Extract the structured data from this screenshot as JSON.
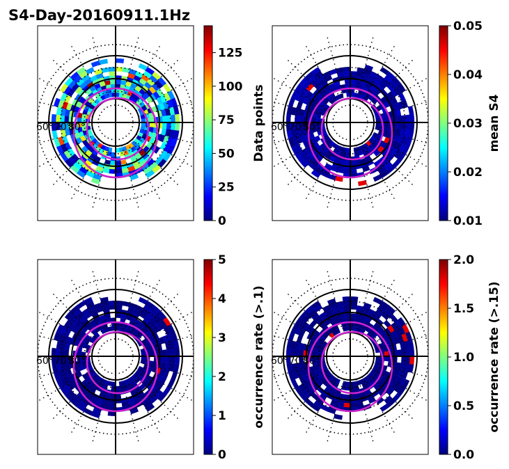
{
  "title": "S4-Day-20160911.1Hz",
  "lat_tick_labels": [
    "60°",
    "70°",
    "80°"
  ],
  "colors": {
    "data_ring_magenta": "#cc22cc",
    "grid_black": "#000000",
    "jet": [
      "#00007f",
      "#0000ff",
      "#007fff",
      "#00ffff",
      "#7fff7f",
      "#ffff00",
      "#ff7f00",
      "#ff0000",
      "#7f0000"
    ]
  },
  "chart_data": [
    {
      "type": "heatmap",
      "projection": "polar",
      "panel": "top-left",
      "colorbar_label": "Data points",
      "range": [
        0,
        145
      ],
      "ticks": [
        0,
        25,
        50,
        75,
        100,
        125
      ],
      "tick_labels": [
        "0",
        "25",
        "50",
        "75",
        "100",
        "125"
      ],
      "level": 0.3,
      "spread": 0.3
    },
    {
      "type": "heatmap",
      "projection": "polar",
      "panel": "top-right",
      "colorbar_label": "mean S4",
      "range": [
        0.01,
        0.05
      ],
      "ticks": [
        0.01,
        0.02,
        0.03,
        0.04,
        0.05
      ],
      "tick_labels": [
        "0.01",
        "0.02",
        "0.03",
        "0.04",
        "0.05"
      ],
      "level": 0.03,
      "spread": 0.04
    },
    {
      "type": "heatmap",
      "projection": "polar",
      "panel": "bottom-left",
      "colorbar_label": "occurrence rate (>.1)",
      "range": [
        0,
        5
      ],
      "ticks": [
        0,
        1,
        2,
        3,
        4,
        5
      ],
      "tick_labels": [
        "0",
        "1",
        "2",
        "3",
        "4",
        "5"
      ],
      "level": 0.01,
      "spread": 0.03
    },
    {
      "type": "heatmap",
      "projection": "polar",
      "panel": "bottom-right",
      "colorbar_label": "occurrence rate (>.15)",
      "range": [
        0,
        2
      ],
      "ticks": [
        0,
        0.5,
        1,
        1.5,
        2
      ],
      "tick_labels": [
        "0.0",
        "0.5",
        "1.0",
        "1.5",
        "2.0"
      ],
      "level": 0.01,
      "spread": 0.02
    }
  ]
}
